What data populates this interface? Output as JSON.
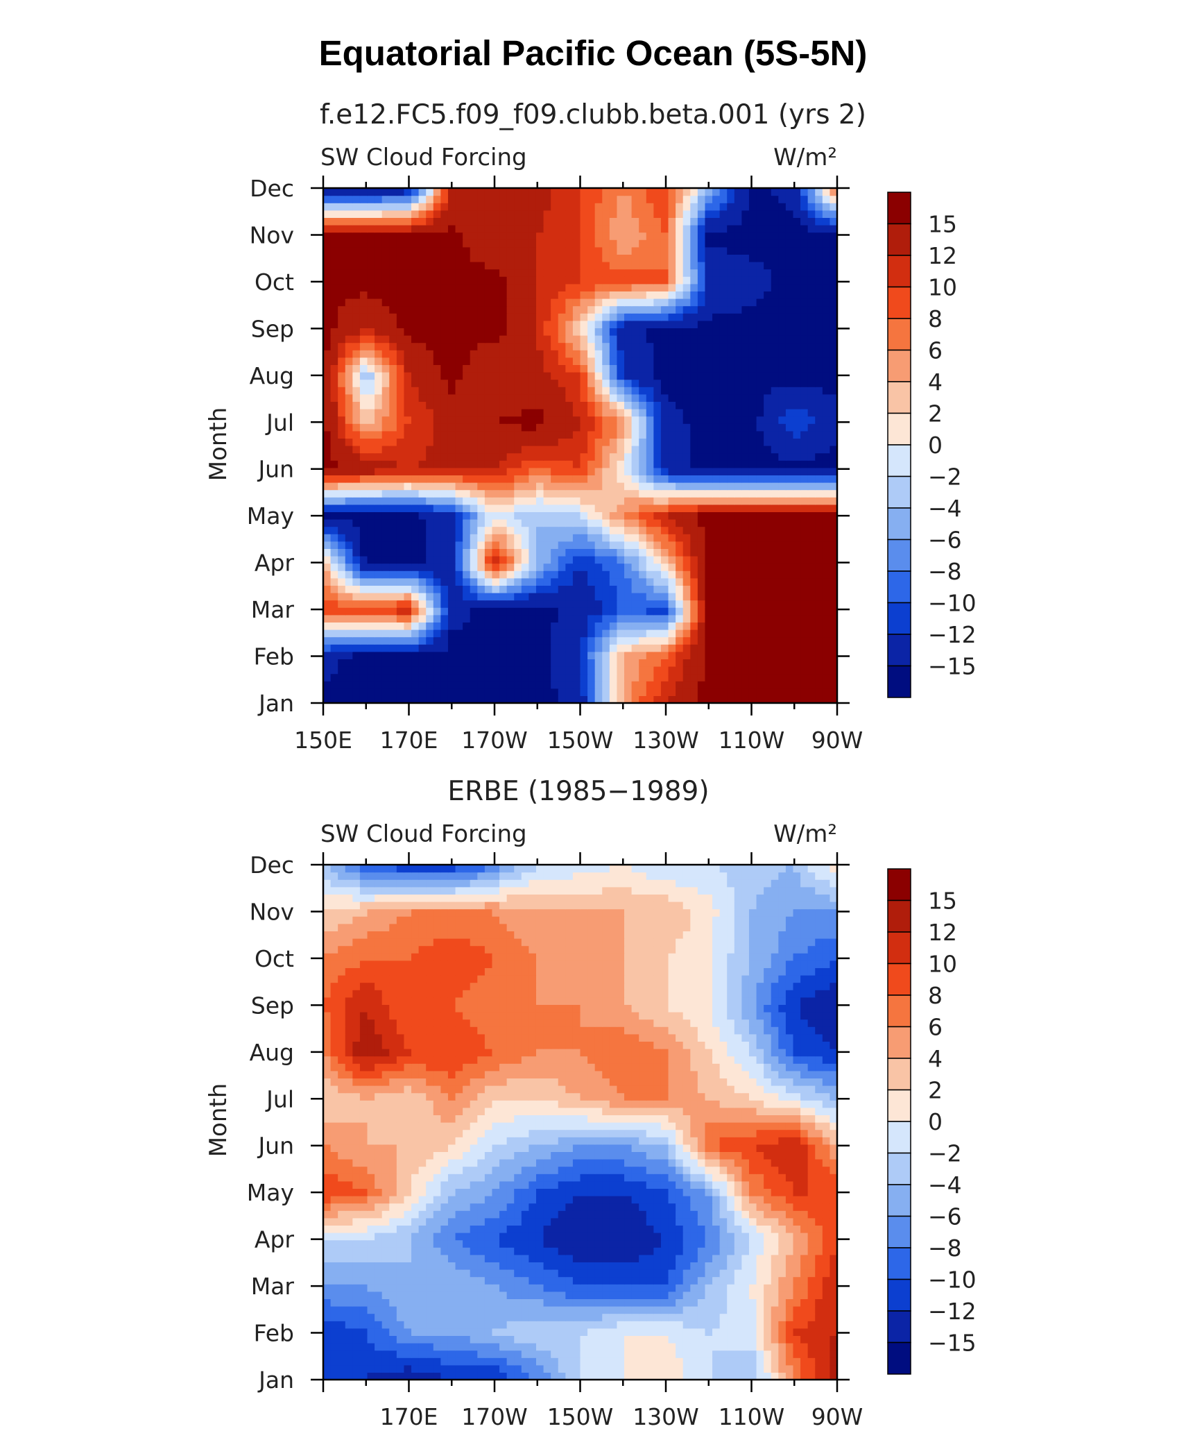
{
  "title": "Equatorial Pacific Ocean (5S-5N)",
  "colorbar": {
    "levels": [
      15,
      12,
      10,
      8,
      6,
      4,
      2,
      0,
      -2,
      -4,
      -6,
      -8,
      -10,
      -12,
      -15
    ],
    "labels": [
      "15",
      "12",
      "10",
      "8",
      "6",
      "4",
      "2",
      "0",
      "−2",
      "−4",
      "−6",
      "−8",
      "−10",
      "−12",
      "−15"
    ],
    "colors": [
      "#8b0000",
      "#b01d0b",
      "#d22e10",
      "#f04a1c",
      "#f5753f",
      "#f79c73",
      "#f9c4a6",
      "#fde6d6",
      "#d5e6fc",
      "#aecbf7",
      "#86aff1",
      "#5a8ded",
      "#2d67e8",
      "#0c3fd0",
      "#0b24a6",
      "#000d80"
    ]
  },
  "chart_data": [
    {
      "type": "heatmap",
      "title": "f.e12.FC5.f09_f09.clubb.beta.001 (yrs 2)",
      "left_label": "SW Cloud Forcing",
      "units": "W/m²",
      "ylabel": "Month",
      "x_ticks": [
        "150E",
        "170E",
        "170W",
        "150W",
        "130W",
        "110W",
        "90W"
      ],
      "y_ticks": [
        "Jan",
        "Feb",
        "Mar",
        "Apr",
        "May",
        "Jun",
        "Jul",
        "Aug",
        "Sep",
        "Oct",
        "Nov",
        "Dec"
      ],
      "x_range": [
        "150E",
        "90W"
      ],
      "y_range": [
        "Jan",
        "Dec"
      ],
      "grid": [
        [
          -16,
          -16,
          -16,
          -16,
          -16,
          -16,
          -14,
          5,
          12,
          16,
          16,
          16,
          16
        ],
        [
          -14,
          -16,
          -16,
          -16,
          -16,
          -16,
          -12,
          4,
          8,
          16,
          16,
          16,
          16
        ],
        [
          10,
          9,
          12,
          -14,
          -16,
          -16,
          -14,
          -10,
          -11,
          16,
          16,
          16,
          16
        ],
        [
          4,
          -16,
          -16,
          -14,
          13,
          -4,
          -12,
          -8,
          3,
          16,
          16,
          16,
          16
        ],
        [
          -16,
          -16,
          -16,
          -13,
          0,
          -4,
          -2,
          6,
          12,
          16,
          16,
          16,
          16
        ],
        [
          16,
          14,
          12,
          13,
          12,
          8,
          10,
          0,
          -13,
          -16,
          -16,
          -16,
          -16
        ],
        [
          16,
          3,
          10,
          13,
          15,
          16,
          12,
          6,
          -14,
          -16,
          -16,
          -10,
          -14
        ],
        [
          16,
          -4,
          12,
          16,
          12,
          13,
          10,
          -12,
          -16,
          -16,
          -16,
          -16,
          -16
        ],
        [
          16,
          12,
          16,
          16,
          16,
          12,
          2,
          -14,
          -16,
          -16,
          -16,
          -16,
          -16
        ],
        [
          16,
          16,
          16,
          16,
          16,
          12,
          10,
          9,
          8,
          -12,
          -14,
          -16,
          -16
        ],
        [
          16,
          16,
          16,
          16,
          12,
          12,
          10,
          4,
          8,
          -16,
          -16,
          -16,
          -16
        ],
        [
          -16,
          -16,
          -14,
          12,
          12,
          13,
          10,
          6,
          10,
          -4,
          -16,
          -14,
          8
        ]
      ]
    },
    {
      "type": "heatmap",
      "title": "ERBE (1985−1989)",
      "left_label": "SW Cloud Forcing",
      "units": "W/m²",
      "ylabel": "Month",
      "x_ticks": [
        "170E",
        "170W",
        "150W",
        "130W",
        "110W",
        "90W"
      ],
      "y_ticks": [
        "Jan",
        "Feb",
        "Mar",
        "Apr",
        "May",
        "Jun",
        "Jul",
        "Aug",
        "Sep",
        "Oct",
        "Nov",
        "Dec"
      ],
      "x_range": [
        "150E",
        "90W"
      ],
      "y_range": [
        "Jan",
        "Dec"
      ],
      "grid": [
        [
          -10,
          -12,
          -14,
          -12,
          -12,
          -8,
          -2,
          0,
          2,
          -2,
          -4,
          6,
          14
        ],
        [
          -12,
          -10,
          -6,
          -6,
          -4,
          -2,
          -2,
          0,
          0,
          -2,
          -1,
          10,
          12
        ],
        [
          -6,
          -6,
          -4,
          -4,
          -6,
          -8,
          -10,
          -10,
          -10,
          -4,
          0,
          6,
          12
        ],
        [
          -2,
          -2,
          -4,
          -8,
          -10,
          -12,
          -14,
          -14,
          -12,
          -8,
          -2,
          4,
          10
        ],
        [
          10,
          8,
          2,
          -4,
          -6,
          -10,
          -12,
          -12,
          -10,
          -6,
          6,
          10,
          10
        ],
        [
          6,
          4,
          4,
          2,
          -2,
          -4,
          -6,
          -6,
          -4,
          8,
          10,
          12,
          4
        ],
        [
          2,
          4,
          2,
          6,
          2,
          2,
          4,
          6,
          6,
          4,
          2,
          -1,
          -4
        ],
        [
          6,
          14,
          10,
          10,
          8,
          6,
          6,
          8,
          6,
          2,
          -2,
          -10,
          -12
        ],
        [
          8,
          12,
          8,
          8,
          6,
          6,
          6,
          4,
          2,
          0,
          -6,
          -12,
          -14
        ],
        [
          6,
          8,
          8,
          10,
          8,
          6,
          4,
          4,
          2,
          0,
          -4,
          -8,
          -10
        ],
        [
          2,
          4,
          6,
          6,
          6,
          4,
          4,
          4,
          4,
          1,
          -4,
          -6,
          -6
        ],
        [
          -4,
          -10,
          -12,
          -12,
          -8,
          -2,
          -1,
          0,
          -2,
          -2,
          -3,
          -4,
          2
        ]
      ]
    }
  ]
}
